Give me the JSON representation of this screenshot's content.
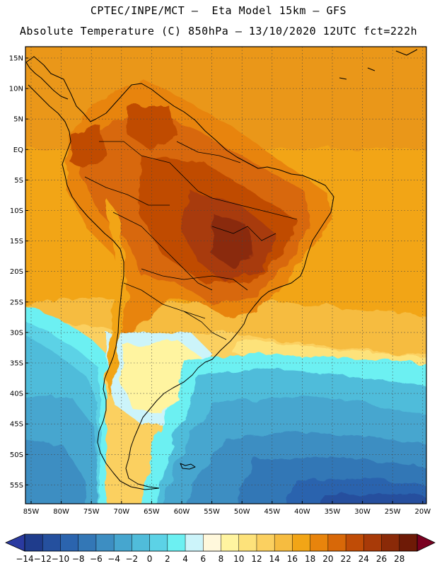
{
  "header": {
    "line1": "CPTEC/INPE/MCT –  Eta Model 15km – GFS",
    "line2": "Absolute Temperature (C) 850hPa – 13/10/2020 12UTC fct=222h"
  },
  "map": {
    "lat_labels": [
      "15N",
      "10N",
      "5N",
      "EQ",
      "5S",
      "10S",
      "15S",
      "20S",
      "25S",
      "30S",
      "35S",
      "40S",
      "45S",
      "50S",
      "55S"
    ],
    "lon_labels": [
      "85W",
      "80W",
      "75W",
      "70W",
      "65W",
      "60W",
      "55W",
      "50W",
      "45W",
      "40W",
      "35W",
      "30W",
      "25W",
      "20W"
    ]
  },
  "colorbar": {
    "labels": [
      "-14",
      "-12",
      "-10",
      "-8",
      "-6",
      "-4",
      "-2",
      "0",
      "2",
      "4",
      "6",
      "8",
      "10",
      "12",
      "14",
      "16",
      "18",
      "20",
      "22",
      "24",
      "26",
      "28"
    ],
    "colors": [
      "#1f3c8c",
      "#25509e",
      "#2b64ae",
      "#3377b6",
      "#3d8ec2",
      "#46a6cf",
      "#50bcda",
      "#5cd2e6",
      "#6cf0f2",
      "#ccf4fa",
      "#fff8dc",
      "#fff4a0",
      "#fde27a",
      "#fbd060",
      "#f6bc40",
      "#f2a516",
      "#e8840c",
      "#d86808",
      "#c04c06",
      "#a83a08",
      "#8a2a08",
      "#6e1a06"
    ],
    "under_color": "#2a3aa0",
    "over_color": "#7a0020"
  }
}
